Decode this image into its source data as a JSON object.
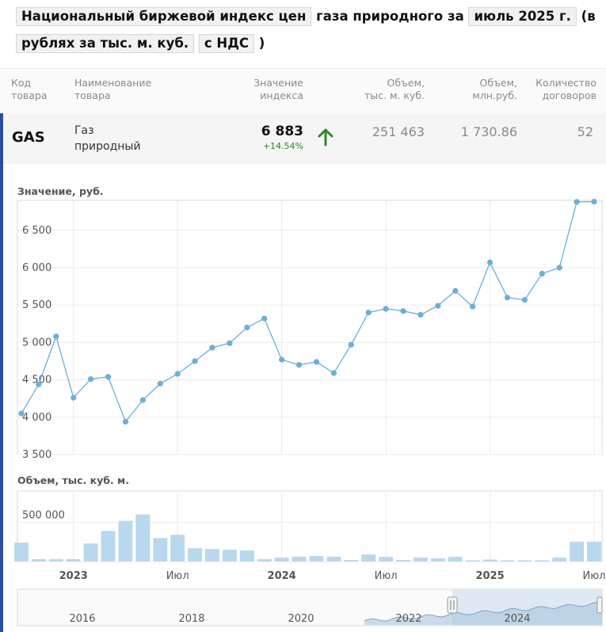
{
  "title": {
    "part1": "Национальный биржевой индекс цен",
    "part2": "газа природного за",
    "period": "июль 2025 г.",
    "part3": "(в",
    "unit": "рублях за тыс. м. куб.",
    "vat": "с НДС",
    "close": ")"
  },
  "table": {
    "headers": {
      "code": [
        "Код",
        "товара"
      ],
      "name": [
        "Наименование",
        "товара"
      ],
      "index": [
        "Значение",
        "индекса"
      ],
      "vol_m3": [
        "Объем,",
        "тыс. м. куб."
      ],
      "vol_rub": [
        "Объем,",
        "млн.руб."
      ],
      "count": [
        "Количество",
        "договоров"
      ]
    },
    "row": {
      "code": "GAS",
      "name": [
        "Газ",
        "природный"
      ],
      "index": "6 883",
      "change": "+14.54%",
      "vol_m3": "251 463",
      "vol_rub": "1 730.86",
      "count": "52"
    },
    "colors": {
      "up": "#2a8a2a",
      "accent": "#2a4f9e"
    }
  },
  "chart_data": [
    {
      "type": "line",
      "ylabel": "Значение, руб.",
      "ylim": [
        3500,
        6900
      ],
      "yticks": [
        3500,
        4000,
        4500,
        5000,
        5500,
        6000,
        6500
      ],
      "ytick_labels": [
        "3 500",
        "4 000",
        "4 500",
        "5 000",
        "5 500",
        "6 000",
        "6 500"
      ],
      "grid": true,
      "x": [
        "2022-10",
        "2022-11",
        "2022-12",
        "2023-01",
        "2023-02",
        "2023-03",
        "2023-04",
        "2023-05",
        "2023-06",
        "2023-07",
        "2023-08",
        "2023-09",
        "2023-10",
        "2023-11",
        "2023-12",
        "2024-01",
        "2024-02",
        "2024-03",
        "2024-04",
        "2024-05",
        "2024-06",
        "2024-07",
        "2024-08",
        "2024-09",
        "2024-10",
        "2024-11",
        "2024-12",
        "2025-01",
        "2025-02",
        "2025-03",
        "2025-04",
        "2025-05",
        "2025-06",
        "2025-07"
      ],
      "values": [
        4050,
        4440,
        5080,
        4260,
        4510,
        4540,
        3940,
        4230,
        4450,
        4580,
        4750,
        4930,
        4990,
        5200,
        5320,
        4770,
        4700,
        4740,
        4590,
        4970,
        5400,
        5450,
        5420,
        5370,
        5490,
        5690,
        5480,
        6070,
        5600,
        5570,
        5920,
        6000,
        6880,
        6883
      ],
      "color": "#6aafd8"
    },
    {
      "type": "bar",
      "ylabel": "Объем, тыс. куб. м.",
      "ylim": [
        0,
        900000
      ],
      "yticks": [
        0,
        500000
      ],
      "ytick_labels": [
        "0",
        "500 000"
      ],
      "x_labels": [
        {
          "x": "2023-01",
          "text": "2023",
          "bold": true
        },
        {
          "x": "2023-07",
          "text": "Июл",
          "bold": false
        },
        {
          "x": "2024-01",
          "text": "2024",
          "bold": true
        },
        {
          "x": "2024-07",
          "text": "Июл",
          "bold": false
        },
        {
          "x": "2025-01",
          "text": "2025",
          "bold": true
        },
        {
          "x": "2025-07",
          "text": "Июл",
          "bold": false
        }
      ],
      "values": [
        240000,
        30000,
        30000,
        30000,
        230000,
        390000,
        520000,
        600000,
        300000,
        340000,
        170000,
        160000,
        150000,
        140000,
        30000,
        50000,
        60000,
        70000,
        60000,
        20000,
        90000,
        60000,
        20000,
        50000,
        40000,
        60000,
        15000,
        25000,
        15000,
        15000,
        15000,
        50000,
        251463,
        251463
      ],
      "color": "#b8d8ee"
    },
    {
      "type": "area",
      "role": "navigator",
      "x_labels": [
        "2016",
        "2018",
        "2020",
        "2022",
        "2024"
      ]
    }
  ]
}
